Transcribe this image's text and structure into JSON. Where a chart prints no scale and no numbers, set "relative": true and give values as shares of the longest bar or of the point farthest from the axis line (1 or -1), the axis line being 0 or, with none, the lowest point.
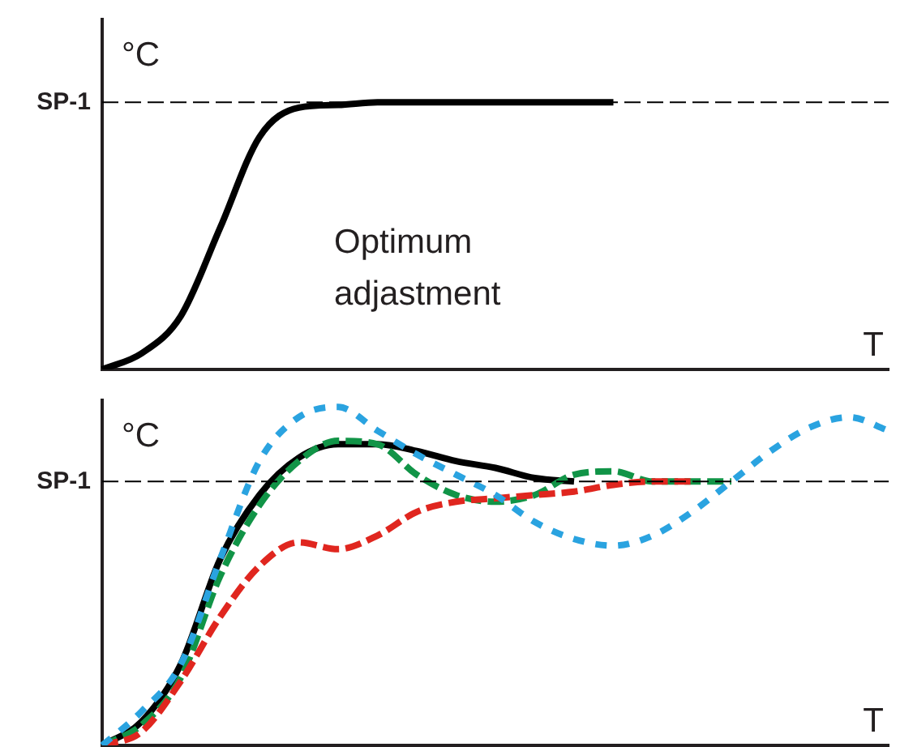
{
  "chart_data": [
    {
      "type": "line",
      "ylabel": "°C",
      "xlabel": "T",
      "relative": true,
      "grid": false,
      "legend": false,
      "marker": "none",
      "categories": [
        null,
        null,
        null,
        null,
        null,
        null,
        null,
        null,
        null,
        null,
        null,
        null,
        null,
        null,
        null,
        null,
        null,
        null,
        null,
        null,
        null
      ],
      "series": [
        {
          "color": "#000000",
          "line_style": "solid",
          "values": [
            0,
            0.06,
            0.2,
            0.53,
            0.87,
            0.98,
            0.99,
            1,
            1,
            1,
            1,
            1,
            1,
            1,
            null,
            null,
            null,
            null,
            null,
            null,
            null
          ]
        }
      ],
      "ref_lines": [
        {
          "axis": "y",
          "value": 1,
          "label": "SP-1",
          "line_style": "dashed"
        }
      ],
      "annotations": [
        "Optimum adjastment"
      ]
    },
    {
      "type": "line",
      "ylabel": "°C",
      "xlabel": "T",
      "relative": true,
      "grid": false,
      "legend": false,
      "marker": "none",
      "categories": [
        null,
        null,
        null,
        null,
        null,
        null,
        null,
        null,
        null,
        null,
        null,
        null,
        null,
        null,
        null,
        null,
        null,
        null,
        null,
        null,
        null
      ],
      "series": [
        {
          "color": "#2aa3e0",
          "line_style": "dotted",
          "values": [
            0,
            0.1,
            0.24,
            0.55,
            0.84,
            0.97,
            1,
            0.93,
            0.86,
            0.8,
            0.74,
            0.66,
            0.61,
            0.59,
            0.62,
            0.69,
            0.78,
            0.87,
            0.94,
            0.97,
            0.93
          ]
        },
        {
          "color": "#e0261f",
          "line_style": "dashed",
          "values": [
            0,
            0.04,
            0.19,
            0.38,
            0.53,
            0.6,
            0.58,
            0.62,
            0.69,
            0.72,
            0.73,
            0.74,
            0.75,
            0.77,
            0.78,
            0.78,
            null,
            null,
            null,
            null,
            null
          ]
        },
        {
          "color": "#119447",
          "line_style": "dashed",
          "values": [
            0,
            0.06,
            0.2,
            0.5,
            0.71,
            0.84,
            0.9,
            0.89,
            0.8,
            0.74,
            0.72,
            0.74,
            0.8,
            0.81,
            0.78,
            0.78,
            0.78,
            null,
            null,
            null,
            null
          ]
        },
        {
          "color": "#000000",
          "line_style": "solid",
          "values": [
            0,
            0.07,
            0.24,
            0.55,
            0.74,
            0.85,
            0.89,
            0.89,
            0.87,
            0.84,
            0.82,
            0.79,
            0.78,
            null,
            null,
            null,
            null,
            null,
            null,
            null,
            null
          ]
        }
      ],
      "ref_lines": [
        {
          "axis": "y",
          "value": 0.78,
          "label": "SP-1",
          "line_style": "dashed"
        }
      ]
    }
  ]
}
